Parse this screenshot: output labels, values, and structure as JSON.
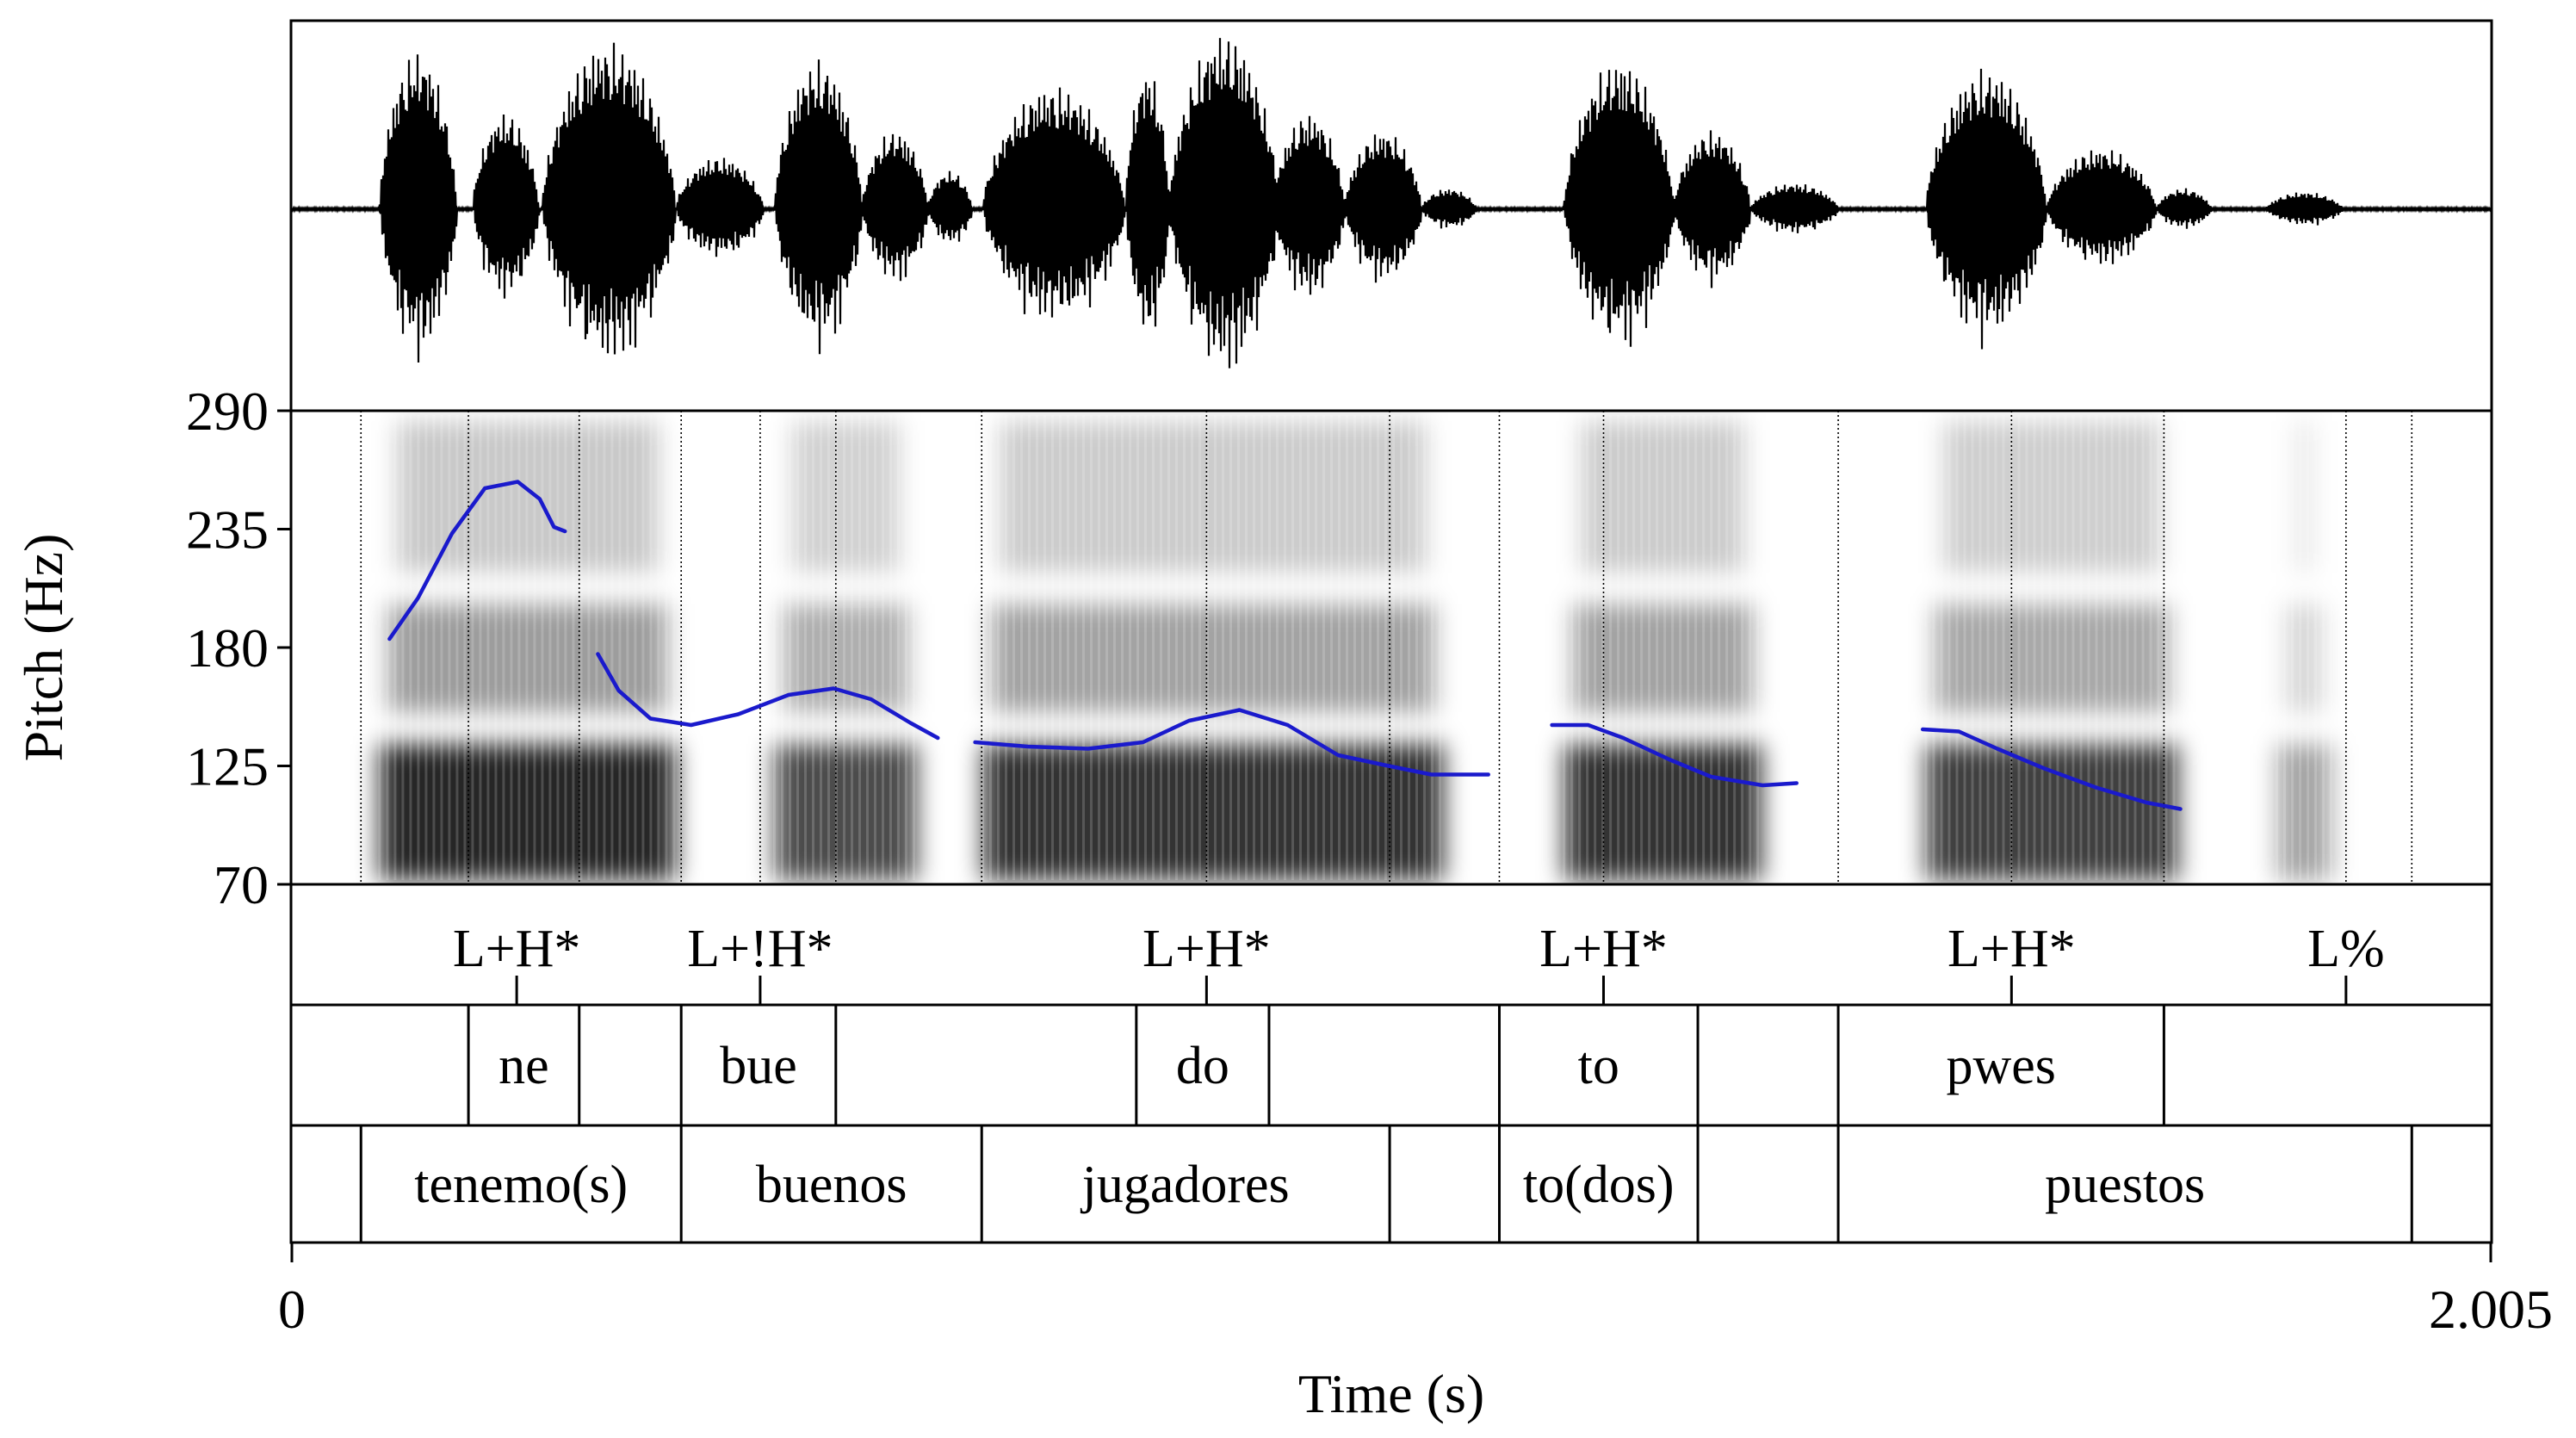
{
  "chart_data": {
    "type": "line",
    "title": "",
    "xlabel": "Time (s)",
    "ylabel": "Pitch (Hz)",
    "xlim": [
      0,
      2.005
    ],
    "ylim": [
      70,
      290
    ],
    "x_tick_labels": [
      "0",
      "2.005"
    ],
    "y_tick_labels": [
      "290",
      "235",
      "180",
      "125",
      "70"
    ],
    "y_ticks": [
      290,
      235,
      180,
      125,
      70
    ],
    "colors": {
      "pitch": "#1a1acc",
      "frame": "#000000",
      "spectrogram": "#000000"
    },
    "series": [
      {
        "name": "pitch contour seg1",
        "x": [
          0.089,
          0.115,
          0.146,
          0.176,
          0.206,
          0.226,
          0.239,
          0.249
        ],
        "y": [
          184,
          203,
          233,
          254,
          257,
          249,
          236,
          234
        ]
      },
      {
        "name": "pitch contour seg2",
        "x": [
          0.279,
          0.298,
          0.327,
          0.364,
          0.407,
          0.453,
          0.494,
          0.528,
          0.564,
          0.589
        ],
        "y": [
          177,
          160,
          147,
          144,
          149,
          158,
          161,
          156,
          145,
          138
        ]
      },
      {
        "name": "pitch contour seg3",
        "x": [
          0.623,
          0.671,
          0.726,
          0.776,
          0.818,
          0.864,
          0.908,
          0.954,
          1.0,
          1.039,
          1.091
        ],
        "y": [
          136,
          134,
          133,
          136,
          146,
          151,
          144,
          130,
          125,
          121,
          121
        ]
      },
      {
        "name": "pitch contour seg4",
        "x": [
          1.149,
          1.182,
          1.214,
          1.256,
          1.294,
          1.341,
          1.372
        ],
        "y": [
          144,
          144,
          138,
          128,
          120,
          116,
          117
        ]
      },
      {
        "name": "pitch contour seg5",
        "x": [
          1.487,
          1.52,
          1.555,
          1.597,
          1.645,
          1.691,
          1.722
        ],
        "y": [
          142,
          141,
          133,
          124,
          115,
          108,
          105
        ]
      }
    ],
    "tiers": {
      "tones": [
        {
          "label": "L+H*",
          "t": 0.205
        },
        {
          "label": "L+!H*",
          "t": 0.427
        },
        {
          "label": "L+H*",
          "t": 0.834
        },
        {
          "label": "L+H*",
          "t": 1.196
        },
        {
          "label": "L+H*",
          "t": 1.568
        },
        {
          "label": "L%",
          "t": 1.873
        }
      ],
      "syllables": {
        "boundaries": [
          0.161,
          0.262,
          0.355,
          0.496,
          0.77,
          0.891,
          1.101,
          1.282,
          1.41,
          1.707
        ],
        "labels": [
          {
            "label": "ne",
            "from": 0.161,
            "to": 0.262
          },
          {
            "label": "bue",
            "from": 0.355,
            "to": 0.496
          },
          {
            "label": "do",
            "from": 0.77,
            "to": 0.891
          },
          {
            "label": "to",
            "from": 1.101,
            "to": 1.282
          },
          {
            "label": "pwes",
            "from": 1.41,
            "to": 1.707
          }
        ]
      },
      "words": {
        "boundaries": [
          0.063,
          0.355,
          0.629,
          1.001,
          1.101,
          1.282,
          1.41,
          1.933
        ],
        "labels": [
          {
            "label": "tenemo(s)",
            "from": 0.063,
            "to": 0.355
          },
          {
            "label": "buenos",
            "from": 0.355,
            "to": 0.629
          },
          {
            "label": "jugadores",
            "from": 0.629,
            "to": 1.001
          },
          {
            "label": "to(dos)",
            "from": 1.101,
            "to": 1.282
          },
          {
            "label": "puestos",
            "from": 1.41,
            "to": 1.933
          }
        ]
      }
    },
    "spectrogram_lines": [
      0.063,
      0.161,
      0.262,
      0.355,
      0.427,
      0.496,
      0.629,
      0.834,
      1.001,
      1.101,
      1.196,
      1.41,
      1.568,
      1.707,
      1.873,
      1.933
    ]
  }
}
